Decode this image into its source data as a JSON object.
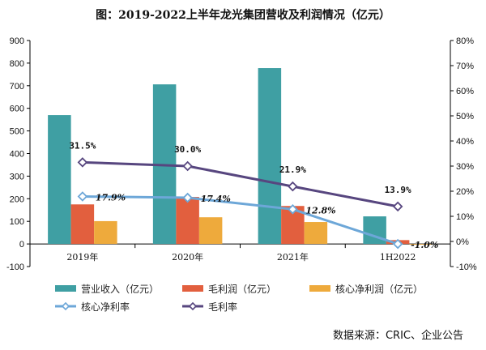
{
  "chart_data": {
    "type": "bar",
    "title": "图：2019-2022上半年龙光集团营收及利润情况（亿元）",
    "categories": [
      "2019年",
      "2020年",
      "2021年",
      "1H2022"
    ],
    "y_left": {
      "ylim": [
        -100,
        900
      ],
      "ticks": [
        "-100",
        "0",
        "100",
        "200",
        "300",
        "400",
        "500",
        "600",
        "700",
        "800",
        "900"
      ],
      "tick_values": [
        -100,
        0,
        100,
        200,
        300,
        400,
        500,
        600,
        700,
        800,
        900
      ]
    },
    "y_right": {
      "ylim": [
        -10,
        80
      ],
      "ticks": [
        "-10%",
        "0%",
        "10%",
        "20%",
        "30%",
        "40%",
        "50%",
        "60%",
        "70%",
        "80%"
      ],
      "tick_values": [
        -10,
        0,
        10,
        20,
        30,
        40,
        50,
        60,
        70,
        80
      ]
    },
    "bar_series": [
      {
        "name": "营业收入（亿元）",
        "color": "#3F9FA3",
        "values": [
          570,
          706,
          778,
          122
        ]
      },
      {
        "name": "毛利润（亿元）",
        "color": "#E25F3E",
        "values": [
          175,
          208,
          168,
          17
        ]
      },
      {
        "name": "核心净利润（亿元）",
        "color": "#EEAA3C",
        "values": [
          101,
          118,
          97,
          -3
        ]
      }
    ],
    "line_series": [
      {
        "name": "核心净利率",
        "color": "#6DA7D8",
        "axis": "right",
        "values": [
          17.9,
          17.4,
          12.8,
          -1.0
        ],
        "labels": [
          "17.9%",
          "17.4%",
          "12.8%",
          "-1.0%"
        ]
      },
      {
        "name": "毛利率",
        "color": "#57467F",
        "axis": "right",
        "values": [
          31.5,
          30.0,
          21.9,
          13.9
        ],
        "labels": [
          "31.5%",
          "30.0%",
          "21.9%",
          "13.9%"
        ]
      }
    ],
    "legend_position": "bottom",
    "grid": false,
    "source": "数据来源：CRIC、企业公告"
  }
}
